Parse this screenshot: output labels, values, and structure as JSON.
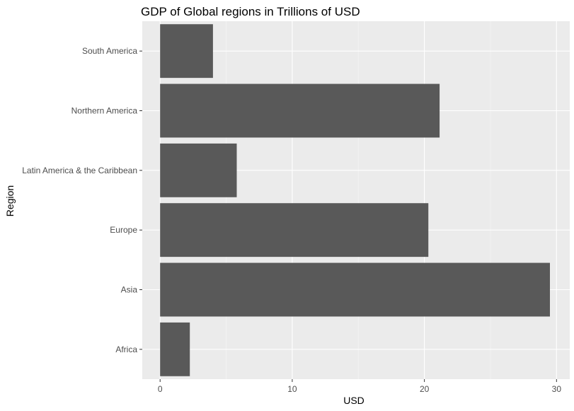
{
  "chart_data": {
    "type": "bar",
    "orientation": "horizontal",
    "title": "GDP of Global regions in Trillions of USD",
    "xlabel": "USD",
    "ylabel": "Region",
    "categories": [
      "Africa",
      "Asia",
      "Europe",
      "Latin America & the Caribbean",
      "Northern America",
      "South America"
    ],
    "values": [
      2.25,
      29.5,
      20.3,
      5.8,
      21.15,
      4.0
    ],
    "xlim": [
      -1.35,
      31.0
    ],
    "xticks": [
      0,
      10,
      20,
      30
    ],
    "grid": true,
    "legend": "none",
    "colors": {
      "panel_background": "#ebebeb",
      "grid_major": "#ffffff",
      "grid_minor": "#f5f5f5",
      "bar_fill": "#595959",
      "tick_text": "#4d4d4d",
      "tick_mark": "#333333"
    }
  }
}
